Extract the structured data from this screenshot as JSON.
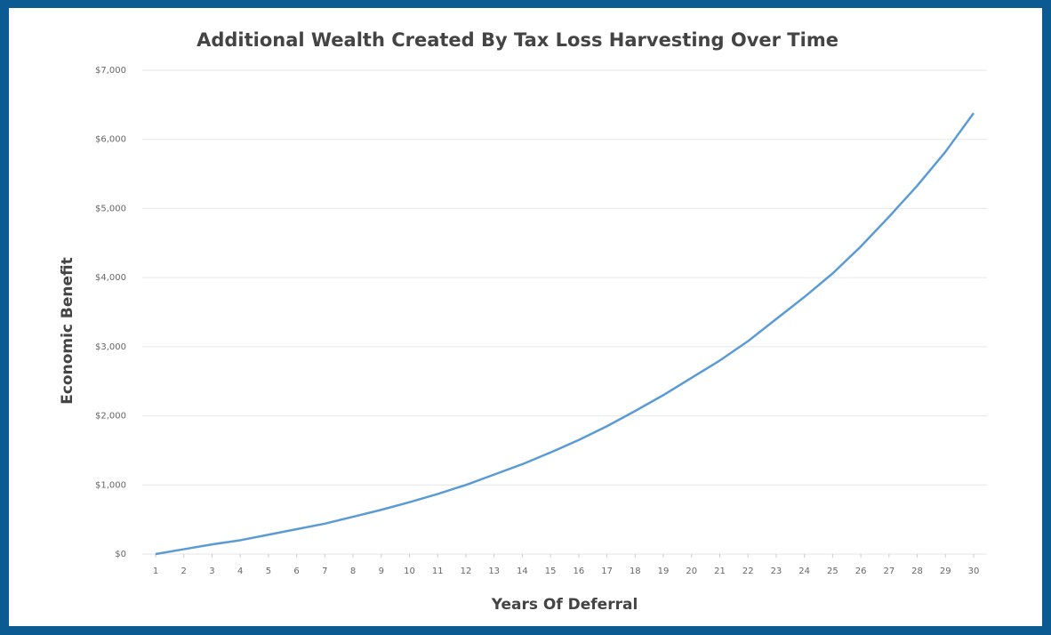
{
  "chart_data": {
    "type": "line",
    "title": "Additional Wealth Created By Tax Loss Harvesting Over Time",
    "x_label": "Years Of Deferral",
    "y_label": "Economic Benefit",
    "x": [
      1,
      2,
      3,
      4,
      5,
      6,
      7,
      8,
      9,
      10,
      11,
      12,
      13,
      14,
      15,
      16,
      17,
      18,
      19,
      20,
      21,
      22,
      23,
      24,
      25,
      26,
      27,
      28,
      29,
      30
    ],
    "values": [
      0,
      70,
      140,
      200,
      280,
      360,
      440,
      540,
      640,
      750,
      870,
      1000,
      1150,
      1300,
      1470,
      1650,
      1850,
      2070,
      2300,
      2550,
      2800,
      3080,
      3400,
      3720,
      4060,
      4450,
      4880,
      5330,
      5820,
      6380
    ],
    "color": "#5b9bd5",
    "xlim": [
      1,
      30
    ],
    "xticks": [
      1,
      2,
      3,
      4,
      5,
      6,
      7,
      8,
      9,
      10,
      11,
      12,
      13,
      14,
      15,
      16,
      17,
      18,
      19,
      20,
      21,
      22,
      23,
      24,
      25,
      26,
      27,
      28,
      29,
      30
    ],
    "ylim": [
      0,
      7000
    ],
    "yticks": [
      {
        "value": 0,
        "label": "$0"
      },
      {
        "value": 1000,
        "label": "$1,000"
      },
      {
        "value": 2000,
        "label": "$2,000"
      },
      {
        "value": 3000,
        "label": "$3,000"
      },
      {
        "value": 4000,
        "label": "$4,000"
      },
      {
        "value": 5000,
        "label": "$5,000"
      },
      {
        "value": 6000,
        "label": "$6,000"
      },
      {
        "value": 7000,
        "label": "$7,000"
      }
    ],
    "grid": true
  }
}
